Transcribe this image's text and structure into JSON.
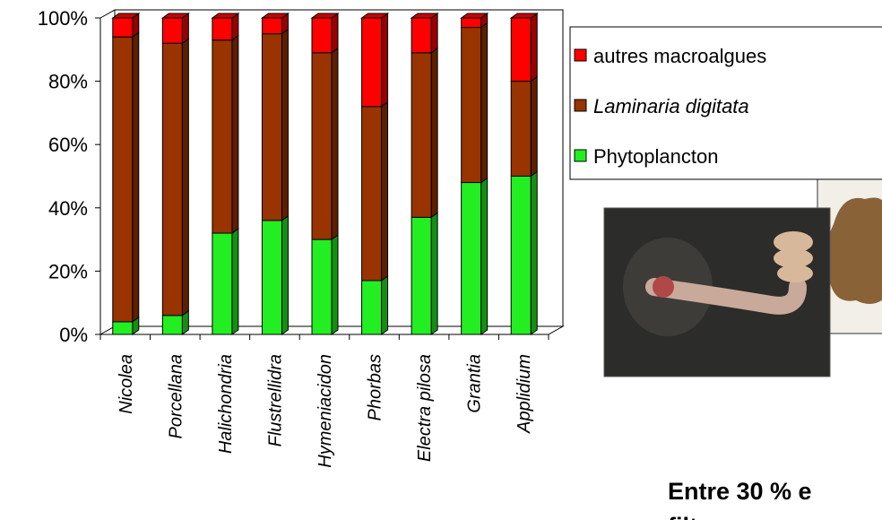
{
  "chart_data": {
    "type": "bar",
    "stacked": true,
    "categories": [
      "Nicolea",
      "Porcellana",
      "Halichondria",
      "Flustrellidra",
      "Hymeniacidon",
      "Phorbas",
      "Electra pilosa",
      "Grantia",
      "Applidium"
    ],
    "series": [
      {
        "name": "Phytoplancton",
        "color": "#22ee22",
        "values": [
          4,
          6,
          32,
          36,
          30,
          17,
          37,
          48,
          50
        ]
      },
      {
        "name": "Laminaria digitata",
        "color": "#993300",
        "values": [
          90,
          86,
          61,
          59,
          59,
          55,
          52,
          49,
          30
        ]
      },
      {
        "name": "autres macroalgues",
        "color": "#ff0000",
        "values": [
          6,
          8,
          7,
          5,
          11,
          28,
          11,
          3,
          20
        ]
      }
    ],
    "ylim": [
      0,
      100
    ],
    "yticks": [
      {
        "value": 0,
        "label": "0%"
      },
      {
        "value": 20,
        "label": "20%"
      },
      {
        "value": 40,
        "label": "40%"
      },
      {
        "value": 60,
        "label": "60%"
      },
      {
        "value": 80,
        "label": "80%"
      },
      {
        "value": 100,
        "label": "100%"
      }
    ]
  },
  "slide": {
    "text_lines": [
      "Entre 30 % e",
      "filtreurs prov"
    ]
  }
}
